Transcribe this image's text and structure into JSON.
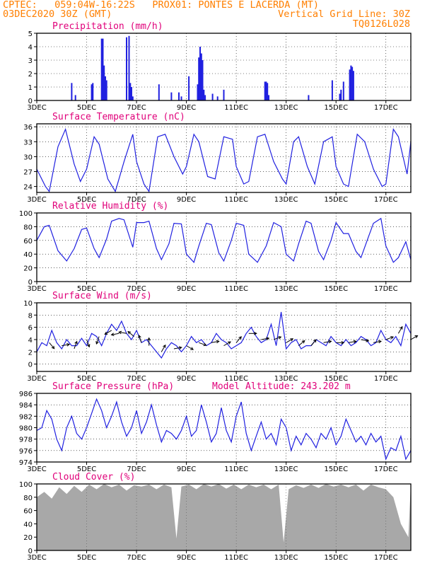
{
  "header": {
    "line1_left": "CPTEC:   059:04W-16:22S   PROX01: PONTES E LACERDA (MT)",
    "line2_left": "03DEC2020 30Z (GMT)",
    "line2_right": "Vertical Grid Line: 30Z",
    "line3_right": "TQ0126L028"
  },
  "colors": {
    "header": "#ff7f00",
    "title": "#e0007a",
    "line": "#2020e0",
    "cloud": "#a8a8a8",
    "arrow": "#000000"
  },
  "x_axis": {
    "start_day": 3,
    "end_day": 18,
    "ticks": [
      3,
      5,
      7,
      9,
      11,
      13,
      15,
      17
    ],
    "tick_labels": [
      "3DEC",
      "5DEC",
      "7DEC",
      "9DEC",
      "11DEC",
      "13DEC",
      "15DEC",
      "17DEC"
    ]
  },
  "chart_data": [
    {
      "id": "precip",
      "type": "bar",
      "title": "Precipitation (mm/h)",
      "ylim": [
        0,
        5
      ],
      "yticks": [
        0,
        1,
        2,
        3,
        4,
        5
      ],
      "grid": true,
      "x": [
        4.4,
        4.55,
        5.2,
        5.25,
        5.6,
        5.65,
        5.7,
        5.75,
        5.8,
        6.6,
        6.7,
        6.75,
        6.8,
        6.85,
        7.9,
        8.4,
        8.7,
        8.8,
        9.1,
        9.45,
        9.5,
        9.55,
        9.6,
        9.65,
        9.7,
        9.75,
        10.05,
        10.25,
        10.5,
        12.15,
        12.2,
        12.25,
        12.3,
        13.9,
        14.85,
        15.15,
        15.2,
        15.3,
        15.55,
        15.6,
        15.65,
        15.7
      ],
      "values": [
        1.3,
        0.4,
        1.2,
        1.3,
        4.6,
        4.6,
        2.6,
        1.8,
        1.5,
        4.7,
        4.8,
        1.3,
        1.0,
        0.3,
        1.2,
        0.6,
        0.6,
        0.3,
        1.8,
        1.2,
        3.2,
        4.0,
        3.5,
        3.0,
        0.8,
        0.4,
        0.5,
        0.3,
        0.8,
        1.4,
        1.4,
        1.3,
        0.4,
        0.4,
        1.5,
        0.5,
        0.8,
        1.4,
        2.3,
        2.6,
        2.5,
        2.2
      ]
    },
    {
      "id": "temp",
      "type": "line",
      "title": "Surface Temperature (nC)",
      "ylim": [
        22.8,
        36.6
      ],
      "yticks": [
        24,
        27,
        30,
        33,
        36
      ],
      "grid": true,
      "x": [
        3.0,
        3.35,
        3.5,
        3.85,
        4.15,
        4.5,
        4.75,
        5.0,
        5.3,
        5.5,
        5.85,
        6.15,
        6.5,
        6.85,
        7.0,
        7.3,
        7.5,
        7.85,
        8.15,
        8.5,
        8.85,
        9.0,
        9.3,
        9.5,
        9.85,
        10.15,
        10.5,
        10.85,
        11.0,
        11.3,
        11.5,
        11.85,
        12.15,
        12.5,
        12.85,
        13.0,
        13.3,
        13.5,
        13.85,
        14.15,
        14.5,
        14.85,
        15.0,
        15.3,
        15.5,
        15.85,
        16.15,
        16.5,
        16.85,
        17.0,
        17.3,
        17.5,
        17.85,
        18.0
      ],
      "values": [
        27.5,
        24.0,
        23.0,
        32.0,
        35.5,
        28.5,
        25.0,
        27.5,
        34.0,
        32.5,
        25.5,
        23.0,
        29.0,
        34.5,
        29.0,
        24.5,
        23.0,
        34.0,
        34.5,
        30.0,
        26.5,
        28.0,
        34.5,
        33.0,
        26.0,
        25.5,
        34.0,
        33.5,
        28.0,
        24.5,
        25.0,
        34.0,
        34.5,
        29.0,
        25.5,
        24.5,
        33.0,
        34.0,
        28.0,
        24.5,
        33.0,
        34.0,
        28.0,
        24.5,
        24.0,
        34.5,
        33.0,
        27.5,
        24.0,
        24.5,
        35.5,
        34.0,
        26.5,
        33.0
      ]
    },
    {
      "id": "rh",
      "type": "line",
      "title": "Relative Humidity (%)",
      "ylim": [
        0,
        100
      ],
      "yticks": [
        0,
        20,
        40,
        60,
        80,
        100
      ],
      "grid": true,
      "x": [
        3.0,
        3.3,
        3.5,
        3.85,
        4.2,
        4.5,
        4.8,
        5.0,
        5.3,
        5.5,
        5.8,
        6.0,
        6.3,
        6.5,
        6.85,
        7.0,
        7.3,
        7.5,
        7.8,
        8.0,
        8.3,
        8.5,
        8.8,
        9.0,
        9.3,
        9.5,
        9.8,
        10.0,
        10.3,
        10.5,
        10.8,
        11.0,
        11.3,
        11.5,
        11.85,
        12.2,
        12.5,
        12.8,
        13.0,
        13.3,
        13.5,
        13.8,
        14.0,
        14.3,
        14.5,
        14.8,
        15.0,
        15.3,
        15.5,
        15.8,
        16.0,
        16.3,
        16.5,
        16.8,
        17.0,
        17.3,
        17.5,
        17.8,
        18.0
      ],
      "values": [
        60,
        80,
        82,
        45,
        30,
        48,
        76,
        78,
        48,
        35,
        62,
        88,
        92,
        90,
        50,
        86,
        86,
        88,
        48,
        32,
        55,
        85,
        84,
        40,
        28,
        52,
        85,
        83,
        42,
        30,
        60,
        85,
        82,
        40,
        28,
        52,
        86,
        80,
        40,
        30,
        55,
        88,
        85,
        44,
        32,
        60,
        86,
        70,
        70,
        44,
        35,
        65,
        85,
        92,
        52,
        28,
        35,
        58,
        32
      ]
    },
    {
      "id": "wind",
      "type": "line",
      "title": "Surface Wind (m/s)",
      "ylim": [
        -1.2,
        10
      ],
      "yticks": [
        0,
        2,
        4,
        6,
        8,
        10
      ],
      "grid": true,
      "x": [
        3.0,
        3.2,
        3.4,
        3.6,
        3.8,
        4.0,
        4.2,
        4.4,
        4.6,
        4.8,
        5.0,
        5.2,
        5.4,
        5.6,
        5.8,
        6.0,
        6.2,
        6.4,
        6.6,
        6.8,
        7.0,
        7.2,
        7.4,
        7.6,
        7.8,
        8.0,
        8.2,
        8.4,
        8.6,
        8.8,
        9.0,
        9.2,
        9.4,
        9.6,
        9.8,
        10.0,
        10.2,
        10.4,
        10.6,
        10.8,
        11.0,
        11.2,
        11.4,
        11.6,
        11.8,
        12.0,
        12.2,
        12.4,
        12.6,
        12.8,
        13.0,
        13.2,
        13.4,
        13.6,
        13.8,
        14.0,
        14.2,
        14.4,
        14.6,
        14.8,
        15.0,
        15.2,
        15.4,
        15.6,
        15.8,
        16.0,
        16.2,
        16.4,
        16.6,
        16.8,
        17.0,
        17.2,
        17.4,
        17.6,
        17.8,
        18.0
      ],
      "values": [
        2.0,
        3.5,
        3.0,
        5.5,
        3.5,
        2.5,
        4.0,
        3.0,
        3.0,
        4.2,
        3.0,
        5.0,
        4.5,
        3.0,
        5.0,
        6.5,
        5.5,
        7.0,
        5.0,
        4.0,
        5.5,
        3.5,
        4.0,
        3.0,
        2.0,
        1.0,
        2.5,
        3.5,
        3.0,
        2.0,
        3.0,
        4.5,
        3.5,
        4.0,
        3.0,
        3.5,
        5.0,
        4.0,
        3.5,
        2.5,
        3.0,
        3.5,
        5.0,
        6.0,
        4.5,
        3.5,
        4.0,
        6.5,
        3.0,
        8.5,
        2.5,
        3.5,
        4.0,
        2.5,
        3.0,
        3.0,
        4.0,
        3.5,
        3.0,
        4.5,
        3.5,
        3.0,
        4.0,
        3.0,
        3.5,
        4.5,
        4.0,
        3.0,
        3.5,
        5.5,
        4.0,
        3.5,
        4.5,
        3.0,
        6.5,
        5.0
      ],
      "barbs": {
        "x": [
          3.5,
          4.0,
          4.5,
          5.0,
          5.5,
          6.0,
          6.3,
          6.6,
          6.9,
          7.2,
          7.5,
          8.0,
          8.5,
          9.0,
          9.5,
          10.0,
          10.5,
          11.0,
          11.5,
          12.0,
          12.5,
          13.0,
          13.5,
          14.0,
          14.5,
          15.0,
          15.5,
          16.0,
          16.5,
          17.0,
          17.5,
          18.0
        ],
        "angles_deg": [
          40,
          100,
          160,
          20,
          340,
          300,
          280,
          260,
          230,
          200,
          180,
          150,
          100,
          60,
          70,
          100,
          120,
          140,
          90,
          100,
          110,
          120,
          130,
          140,
          100,
          90,
          100,
          80,
          100,
          110,
          150,
          120
        ],
        "speeds": [
          3.5,
          3.0,
          2.5,
          4.0,
          4.5,
          5.5,
          5.0,
          5.0,
          4.5,
          3.5,
          3.0,
          2.0,
          2.5,
          3.0,
          3.5,
          3.5,
          3.0,
          3.5,
          5.0,
          4.0,
          4.0,
          3.5,
          3.0,
          3.0,
          3.5,
          3.5,
          3.5,
          4.0,
          3.5,
          4.0,
          5.0,
          4.0
        ]
      }
    },
    {
      "id": "pres",
      "type": "line",
      "title": "Surface Pressure (hPa)",
      "annotation": "Model Altitude: 243.202 m",
      "ylim": [
        974,
        986
      ],
      "yticks": [
        974,
        976,
        978,
        980,
        982,
        984,
        986
      ],
      "grid": true,
      "x": [
        3.0,
        3.2,
        3.4,
        3.6,
        3.8,
        4.0,
        4.2,
        4.4,
        4.6,
        4.8,
        5.0,
        5.2,
        5.4,
        5.6,
        5.8,
        6.0,
        6.2,
        6.4,
        6.6,
        6.8,
        7.0,
        7.2,
        7.4,
        7.6,
        7.8,
        8.0,
        8.2,
        8.4,
        8.6,
        8.8,
        9.0,
        9.2,
        9.4,
        9.6,
        9.8,
        10.0,
        10.2,
        10.4,
        10.6,
        10.8,
        11.0,
        11.2,
        11.4,
        11.6,
        11.8,
        12.0,
        12.2,
        12.4,
        12.6,
        12.8,
        13.0,
        13.2,
        13.4,
        13.6,
        13.8,
        14.0,
        14.2,
        14.4,
        14.6,
        14.8,
        15.0,
        15.2,
        15.4,
        15.6,
        15.8,
        16.0,
        16.2,
        16.4,
        16.6,
        16.8,
        17.0,
        17.2,
        17.4,
        17.6,
        17.8,
        18.0
      ],
      "values": [
        979.5,
        980.0,
        983.0,
        981.5,
        978.0,
        976.0,
        980.0,
        982.0,
        979.0,
        978.0,
        980.0,
        982.5,
        985.0,
        983.0,
        980.0,
        982.0,
        984.5,
        981.0,
        978.5,
        980.0,
        983.0,
        979.0,
        981.0,
        984.0,
        980.5,
        977.5,
        979.5,
        979.0,
        978.0,
        979.5,
        982.0,
        978.5,
        979.5,
        984.0,
        981.0,
        977.5,
        979.0,
        983.5,
        979.5,
        977.5,
        982.0,
        984.5,
        979.0,
        976.0,
        978.5,
        981.0,
        978.0,
        979.0,
        977.0,
        981.5,
        980.0,
        976.0,
        978.5,
        977.0,
        979.0,
        978.0,
        976.5,
        979.0,
        978.0,
        980.0,
        977.0,
        978.5,
        981.5,
        979.5,
        977.5,
        978.5,
        977.0,
        979.0,
        977.5,
        978.5,
        974.5,
        976.5,
        976.0,
        978.5,
        974.5,
        976.0
      ]
    },
    {
      "id": "cloud",
      "type": "area",
      "title": "Cloud Cover (%)",
      "ylim": [
        0,
        100
      ],
      "yticks": [
        0,
        20,
        40,
        60,
        80,
        100
      ],
      "grid": false,
      "x": [
        3.0,
        3.3,
        3.6,
        3.9,
        4.2,
        4.5,
        4.8,
        5.1,
        5.4,
        5.7,
        6.0,
        6.3,
        6.6,
        6.9,
        7.2,
        7.5,
        7.8,
        8.1,
        8.4,
        8.6,
        8.8,
        9.1,
        9.4,
        9.7,
        10.0,
        10.3,
        10.6,
        10.9,
        11.2,
        11.5,
        11.8,
        12.1,
        12.4,
        12.7,
        12.9,
        13.1,
        13.4,
        13.7,
        14.0,
        14.3,
        14.6,
        14.9,
        15.2,
        15.5,
        15.8,
        16.1,
        16.4,
        16.7,
        17.0,
        17.3,
        17.6,
        17.9,
        18.0
      ],
      "values": [
        80,
        88,
        78,
        95,
        85,
        97,
        88,
        99,
        92,
        100,
        95,
        99,
        90,
        98,
        96,
        99,
        92,
        99,
        95,
        18,
        96,
        99,
        92,
        100,
        96,
        100,
        93,
        99,
        92,
        99,
        95,
        99,
        92,
        99,
        12,
        92,
        98,
        94,
        99,
        94,
        100,
        96,
        99,
        95,
        99,
        90,
        99,
        95,
        92,
        80,
        40,
        20,
        100
      ]
    }
  ]
}
